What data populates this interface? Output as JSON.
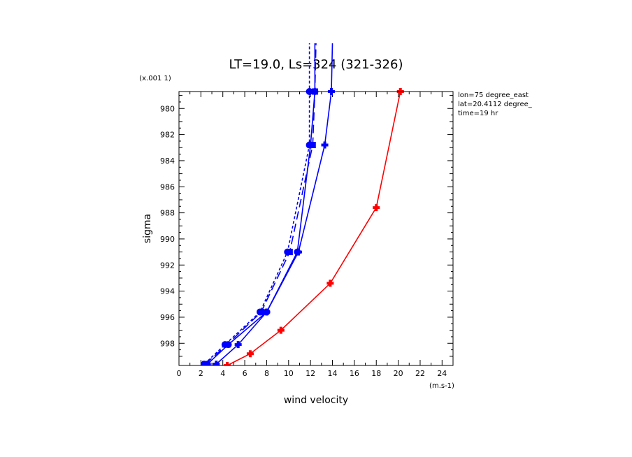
{
  "chart_data": {
    "type": "line",
    "title": "LT=19.0, Ls=324 (321-326)",
    "xlabel": "wind velocity",
    "ylabel": "sigma",
    "x_unit": "(m.s-1)",
    "y_unit": "(x.001 1)",
    "xlim": [
      0,
      25
    ],
    "ylim": [
      999.7,
      978.7
    ],
    "xticks": [
      0,
      2,
      4,
      6,
      8,
      10,
      12,
      14,
      16,
      18,
      20,
      22,
      24
    ],
    "yticks": [
      980,
      982,
      984,
      986,
      988,
      990,
      992,
      994,
      996,
      998
    ],
    "annotations": [
      "lon=75 degree_east",
      "lat=20.4112 degree_",
      "time=19 hr"
    ],
    "series": [
      {
        "color": "#0000ff",
        "dash": "none",
        "marker": "cross",
        "x": [
          3.4,
          5.4,
          8.0,
          10.9,
          13.3,
          13.9,
          14.0
        ],
        "y": [
          999.6,
          998.1,
          995.6,
          991.0,
          982.8,
          978.7,
          975.0
        ]
      },
      {
        "color": "#0000ff",
        "dash": "none",
        "marker": "circle",
        "x": [
          2.6,
          4.5,
          8.0,
          10.8,
          12.0,
          12.4,
          12.4
        ],
        "y": [
          999.6,
          998.1,
          995.6,
          991.0,
          982.8,
          978.7,
          975.0
        ]
      },
      {
        "color": "#0000ff",
        "dash": "long",
        "marker": "square",
        "x": [
          2.4,
          4.4,
          7.5,
          10.1,
          12.2,
          12.4,
          12.5
        ],
        "y": [
          999.6,
          998.1,
          995.6,
          991.0,
          982.8,
          978.7,
          975.0
        ]
      },
      {
        "color": "#0000ff",
        "dash": "short",
        "marker": "circle",
        "x": [
          2.3,
          4.2,
          7.4,
          9.9,
          11.9,
          11.9,
          11.9
        ],
        "y": [
          999.6,
          998.1,
          995.6,
          991.0,
          982.8,
          978.7,
          975.0
        ]
      },
      {
        "color": "#ff0000",
        "dash": "none",
        "marker": "cross",
        "x": [
          4.4,
          6.5,
          9.3,
          13.8,
          18.0,
          20.2
        ],
        "y": [
          999.7,
          998.8,
          997.0,
          993.4,
          987.6,
          978.7
        ]
      }
    ]
  }
}
